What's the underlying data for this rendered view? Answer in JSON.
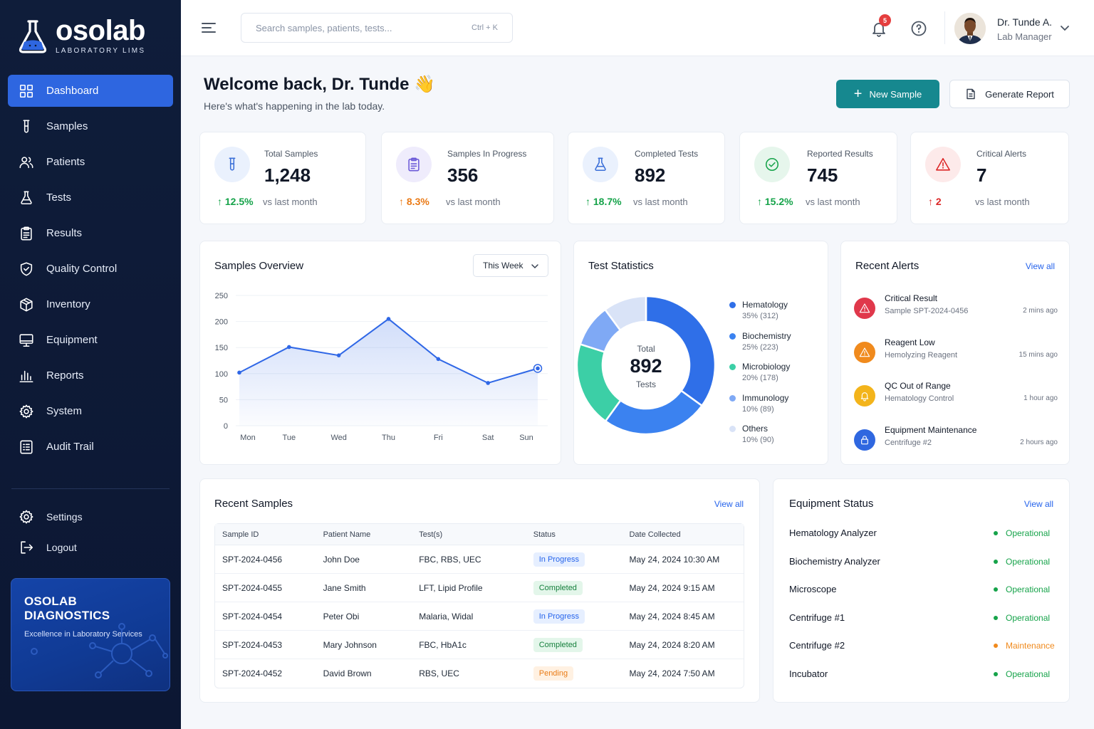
{
  "brand": {
    "name": "osolab",
    "subtitle": "LABORATORY LIMS"
  },
  "sidebar": {
    "items": [
      {
        "label": "Dashboard",
        "icon": "dashboard-icon",
        "active": true
      },
      {
        "label": "Samples",
        "icon": "test-tube-icon"
      },
      {
        "label": "Patients",
        "icon": "users-icon"
      },
      {
        "label": "Tests",
        "icon": "flask-icon"
      },
      {
        "label": "Results",
        "icon": "clipboard-icon"
      },
      {
        "label": "Quality Control",
        "icon": "shield-check-icon"
      },
      {
        "label": "Inventory",
        "icon": "box-icon"
      },
      {
        "label": "Equipment",
        "icon": "monitor-icon"
      },
      {
        "label": "Reports",
        "icon": "bar-chart-icon"
      },
      {
        "label": "System",
        "icon": "gear-icon"
      },
      {
        "label": "Audit Trail",
        "icon": "list-icon"
      }
    ],
    "bottom": [
      {
        "label": "Settings",
        "icon": "gear-icon"
      },
      {
        "label": "Logout",
        "icon": "logout-icon"
      }
    ],
    "promo": {
      "title": "OSOLAB DIAGNOSTICS",
      "subtitle": "Excellence in Laboratory Services"
    }
  },
  "topbar": {
    "search_placeholder": "Search samples, patients, tests...",
    "search_shortcut": "Ctrl + K",
    "notifications_count": "5",
    "user": {
      "name": "Dr. Tunde A.",
      "role": "Lab Manager"
    }
  },
  "welcome": {
    "title": "Welcome back, Dr. Tunde 👋",
    "subtitle": "Here's what's happening in the lab today.",
    "new_sample": "New Sample",
    "generate_report": "Generate Report"
  },
  "stats": [
    {
      "label": "Total Samples",
      "value": "1,248",
      "change": "12.5%",
      "vs": "vs last month",
      "color": "#16a34a",
      "icon": "test-tube-icon",
      "icon_bg": "#eaf1fd",
      "icon_color": "#3b6fd8"
    },
    {
      "label": "Samples In Progress",
      "value": "356",
      "change": "8.3%",
      "vs": "vs last month",
      "color": "#ea7a16",
      "icon": "clipboard-icon",
      "icon_bg": "#efecfc",
      "icon_color": "#6d5bd8"
    },
    {
      "label": "Completed Tests",
      "value": "892",
      "change": "18.7%",
      "vs": "vs last month",
      "color": "#16a34a",
      "icon": "flask-icon",
      "icon_bg": "#eaf1fd",
      "icon_color": "#3b6fd8"
    },
    {
      "label": "Reported Results",
      "value": "745",
      "change": "15.2%",
      "vs": "vs last month",
      "color": "#16a34a",
      "icon": "check-circle-icon",
      "icon_bg": "#e6f6ec",
      "icon_color": "#16a34a"
    },
    {
      "label": "Critical Alerts",
      "value": "7",
      "change": "2",
      "vs": "vs last month",
      "color": "#dc2626",
      "icon": "warning-icon",
      "icon_bg": "#fdeaea",
      "icon_color": "#dc2626"
    }
  ],
  "samples_overview": {
    "title": "Samples Overview",
    "range": "This Week"
  },
  "chart_data": {
    "type": "area",
    "categories": [
      "Mon",
      "Tue",
      "Wed",
      "Thu",
      "Fri",
      "Sat",
      "Sun"
    ],
    "values": [
      102,
      151,
      135,
      205,
      128,
      82,
      110
    ],
    "ylim": [
      0,
      250
    ],
    "yticks": [
      "0",
      "50",
      "100",
      "150",
      "200",
      "250"
    ],
    "grid": true,
    "color": "#2f67e6"
  },
  "test_statistics": {
    "title": "Test Statistics",
    "center_label": "Total",
    "center_value": "892",
    "center_unit": "Tests",
    "segments": [
      {
        "name": "Hematology",
        "detail": "35% (312)",
        "value": 312,
        "color": "#2f6fe8"
      },
      {
        "name": "Biochemistry",
        "detail": "25% (223)",
        "value": 223,
        "color": "#3b82f0"
      },
      {
        "name": "Microbiology",
        "detail": "20% (178)",
        "value": 178,
        "color": "#3ccfa6"
      },
      {
        "name": "Immunology",
        "detail": "10% (89)",
        "value": 89,
        "color": "#7fa9f5"
      },
      {
        "name": "Others",
        "detail": "10% (90)",
        "value": 90,
        "color": "#d9e3f7"
      }
    ]
  },
  "recent_alerts": {
    "title": "Recent Alerts",
    "view_all": "View all",
    "items": [
      {
        "title": "Critical Result",
        "subtitle": "Sample SPT-2024-0456",
        "time": "2 mins ago",
        "color": "#e0384b",
        "icon": "warning-icon"
      },
      {
        "title": "Reagent Low",
        "subtitle": "Hemolyzing Reagent",
        "time": "15 mins ago",
        "color": "#f08a1d",
        "icon": "warning-icon"
      },
      {
        "title": "QC Out of Range",
        "subtitle": "Hematology Control",
        "time": "1 hour ago",
        "color": "#f3b41b",
        "icon": "bell-icon"
      },
      {
        "title": "Equipment Maintenance",
        "subtitle": "Centrifuge #2",
        "time": "2 hours ago",
        "color": "#2f67e0",
        "icon": "lock-icon"
      }
    ]
  },
  "recent_samples": {
    "title": "Recent Samples",
    "view_all": "View all",
    "columns": [
      "Sample ID",
      "Patient Name",
      "Test(s)",
      "Status",
      "Date Collected"
    ],
    "rows": [
      {
        "id": "SPT-2024-0456",
        "patient": "John Doe",
        "tests": "FBC, RBS, UEC",
        "status": "In Progress",
        "status_kind": "progress",
        "date": "May 24, 2024 10:30 AM"
      },
      {
        "id": "SPT-2024-0455",
        "patient": "Jane Smith",
        "tests": "LFT, Lipid Profile",
        "status": "Completed",
        "status_kind": "completed",
        "date": "May 24, 2024 9:15 AM"
      },
      {
        "id": "SPT-2024-0454",
        "patient": "Peter Obi",
        "tests": "Malaria, Widal",
        "status": "In Progress",
        "status_kind": "progress",
        "date": "May 24, 2024 8:45 AM"
      },
      {
        "id": "SPT-2024-0453",
        "patient": "Mary Johnson",
        "tests": "FBC, HbA1c",
        "status": "Completed",
        "status_kind": "completed",
        "date": "May 24, 2024 8:20 AM"
      },
      {
        "id": "SPT-2024-0452",
        "patient": "David Brown",
        "tests": "RBS, UEC",
        "status": "Pending",
        "status_kind": "pending",
        "date": "May 24, 2024 7:50 AM"
      }
    ]
  },
  "equipment_status": {
    "title": "Equipment Status",
    "view_all": "View all",
    "items": [
      {
        "name": "Hematology Analyzer",
        "status": "Operational",
        "color": "#16a34a"
      },
      {
        "name": "Biochemistry Analyzer",
        "status": "Operational",
        "color": "#16a34a"
      },
      {
        "name": "Microscope",
        "status": "Operational",
        "color": "#16a34a"
      },
      {
        "name": "Centrifuge #1",
        "status": "Operational",
        "color": "#16a34a"
      },
      {
        "name": "Centrifuge #2",
        "status": "Maintenance",
        "color": "#f08a1d"
      },
      {
        "name": "Incubator",
        "status": "Operational",
        "color": "#16a34a"
      }
    ]
  }
}
